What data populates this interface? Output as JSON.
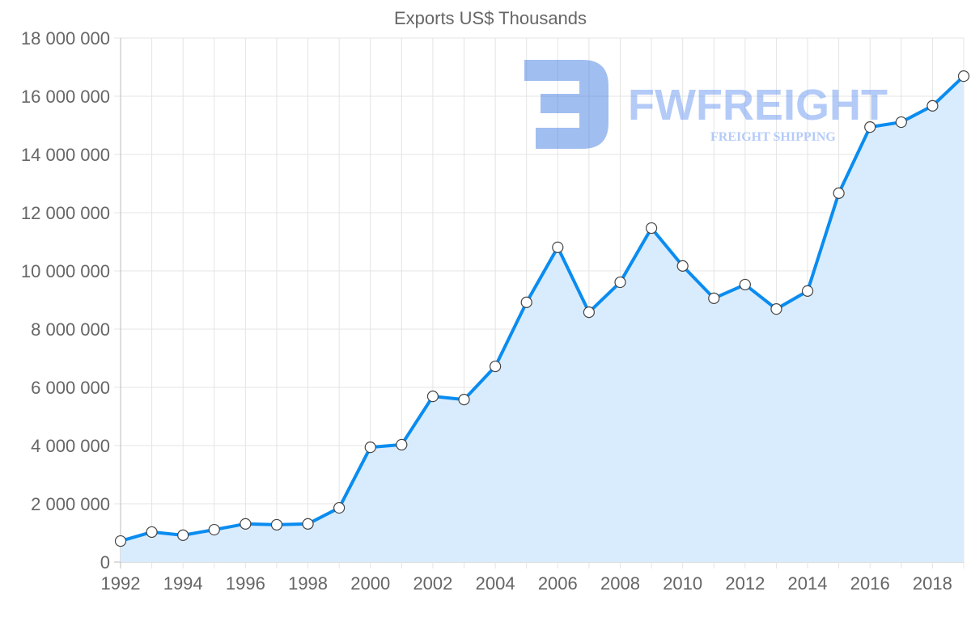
{
  "chart_data": {
    "type": "line",
    "title": "Exports US$ Thousands",
    "xlabel": "",
    "ylabel": "",
    "x": [
      1992,
      1993,
      1994,
      1995,
      1996,
      1997,
      1998,
      1999,
      2000,
      2001,
      2002,
      2003,
      2004,
      2005,
      2006,
      2007,
      2008,
      2009,
      2010,
      2011,
      2012,
      2013,
      2014,
      2015,
      2016,
      2017,
      2018,
      2019
    ],
    "series": [
      {
        "name": "Exports US$ Thousands",
        "color": "#0a8cf0",
        "fill": "#d9ecfd",
        "values": [
          720000,
          1030000,
          920000,
          1110000,
          1310000,
          1280000,
          1310000,
          1860000,
          3940000,
          4030000,
          5690000,
          5580000,
          6720000,
          8920000,
          10810000,
          8580000,
          9610000,
          11470000,
          10170000,
          9060000,
          9530000,
          8690000,
          9310000,
          12670000,
          14940000,
          15110000,
          15670000,
          16690000
        ]
      }
    ],
    "ylim": [
      0,
      18000000
    ],
    "yticks": [
      "0",
      "2 000 000",
      "4 000 000",
      "6 000 000",
      "8 000 000",
      "10 000 000",
      "12 000 000",
      "14 000 000",
      "16 000 000",
      "18 000 000"
    ],
    "xticks": [
      "1992",
      "1994",
      "1996",
      "1998",
      "2000",
      "2002",
      "2004",
      "2006",
      "2008",
      "2010",
      "2012",
      "2014",
      "2016",
      "2018"
    ],
    "grid": true,
    "legend": "none"
  },
  "watermark": {
    "brand": "FWFREIGHT",
    "tagline": "FREIGHT SHIPPING"
  }
}
